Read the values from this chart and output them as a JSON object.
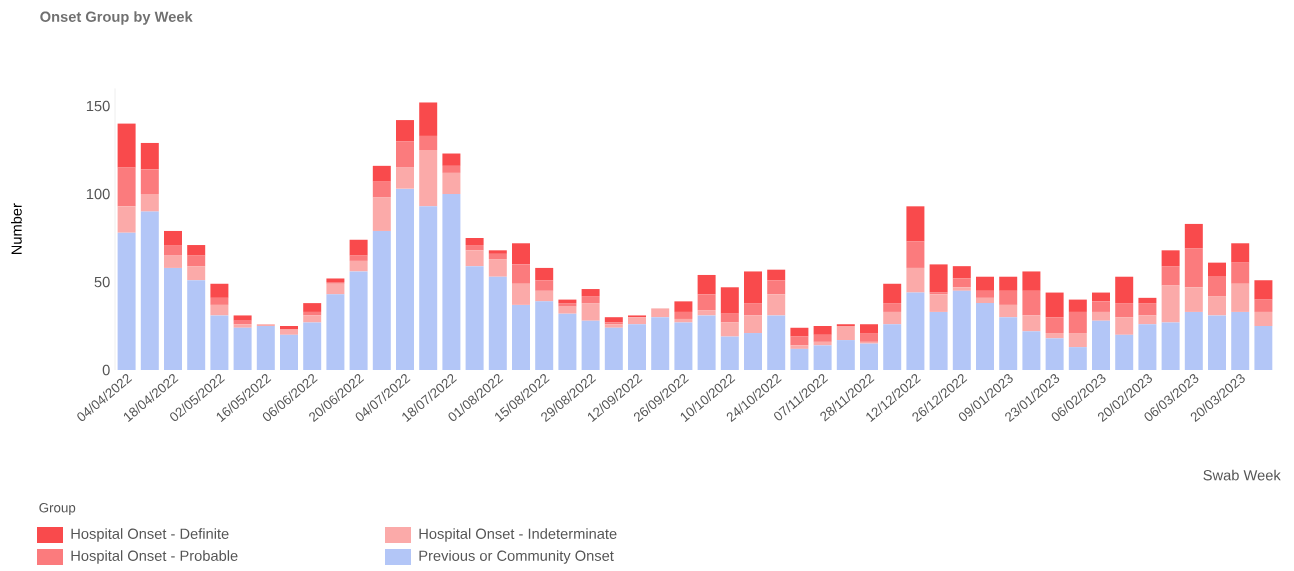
{
  "chart_data": {
    "type": "bar",
    "title": "Onset Group by Week",
    "xlabel": "Swab Week",
    "ylabel": "Number",
    "legend_title": "Group",
    "categories": [
      "04/04/2022",
      null,
      "18/04/2022",
      null,
      "02/05/2022",
      null,
      "16/05/2022",
      null,
      "06/06/2022",
      null,
      "20/06/2022",
      null,
      "04/07/2022",
      null,
      "18/07/2022",
      null,
      "01/08/2022",
      null,
      "15/08/2022",
      null,
      "29/08/2022",
      null,
      "12/09/2022",
      null,
      "26/09/2022",
      null,
      "10/10/2022",
      null,
      "24/10/2022",
      null,
      "07/11/2022",
      null,
      "28/11/2022",
      null,
      "12/12/2022",
      null,
      "26/12/2022",
      null,
      "09/01/2023",
      null,
      "23/01/2023",
      null,
      "06/02/2023",
      null,
      "20/02/2023",
      null,
      "06/03/2023",
      null,
      "20/03/2023",
      null
    ],
    "series": [
      {
        "name": "Previous or Community Onset",
        "color": "#b3c6f7",
        "values": [
          78,
          90,
          58,
          51,
          31,
          24,
          25,
          20,
          27,
          43,
          56,
          79,
          103,
          93,
          100,
          59,
          53,
          37,
          39,
          32,
          28,
          24,
          26,
          30,
          27,
          31,
          19,
          21,
          31,
          12,
          14,
          17,
          15,
          26,
          44,
          33,
          45,
          38,
          30,
          22,
          18,
          13,
          28,
          20,
          26,
          27,
          33,
          31,
          33,
          25
        ]
      },
      {
        "name": "Hospital Onset - Indeterminate",
        "color": "#fbaaa9",
        "values": [
          15,
          10,
          7,
          8,
          6,
          2,
          1,
          3,
          4,
          6,
          6,
          19,
          12,
          32,
          12,
          9,
          10,
          12,
          6,
          4,
          10,
          2,
          4,
          5,
          2,
          3,
          8,
          10,
          12,
          2,
          2,
          8,
          1,
          7,
          14,
          10,
          2,
          3,
          7,
          9,
          3,
          8,
          5,
          10,
          5,
          21,
          14,
          11,
          16,
          8
        ]
      },
      {
        "name": "Hospital Onset - Probable",
        "color": "#fb7b7d",
        "values": [
          22,
          14,
          6,
          6,
          4,
          2,
          0,
          0,
          2,
          1,
          3,
          9,
          15,
          8,
          4,
          3,
          3,
          11,
          6,
          2,
          4,
          1,
          0,
          0,
          4,
          9,
          5,
          7,
          8,
          5,
          4,
          0,
          5,
          5,
          15,
          1,
          5,
          4,
          8,
          14,
          9,
          12,
          6,
          8,
          7,
          11,
          22,
          11,
          12,
          7
        ]
      },
      {
        "name": "Hospital Onset - Definite",
        "color": "#f94a4c",
        "values": [
          25,
          15,
          8,
          6,
          8,
          3,
          0,
          2,
          5,
          2,
          9,
          9,
          12,
          19,
          7,
          4,
          2,
          12,
          7,
          2,
          4,
          3,
          1,
          0,
          6,
          11,
          15,
          18,
          6,
          5,
          5,
          1,
          5,
          11,
          20,
          16,
          7,
          8,
          8,
          11,
          14,
          7,
          5,
          15,
          3,
          9,
          14,
          8,
          11,
          11
        ]
      }
    ],
    "stacked": true,
    "ylim": [
      0,
      160
    ],
    "yticks": [
      0,
      50,
      100,
      150
    ],
    "legend": "bottom left"
  }
}
